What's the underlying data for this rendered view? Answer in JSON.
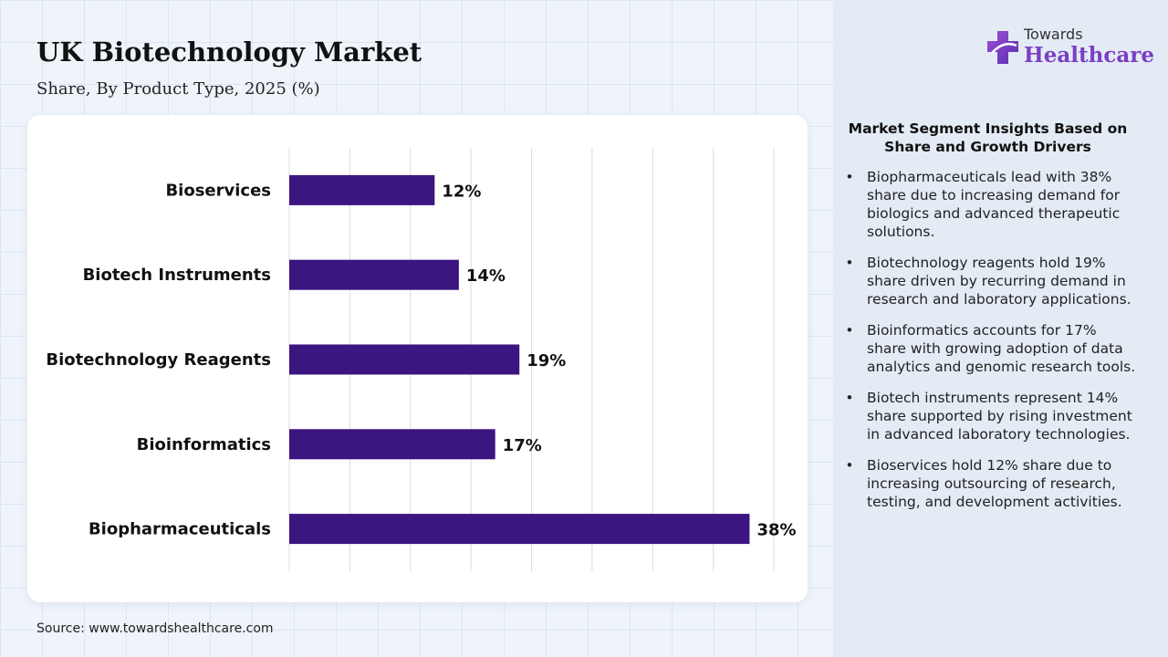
{
  "header": {
    "title": "UK Biotechnology Market",
    "subtitle": "Share, By Product Type, 2025 (%)"
  },
  "logo": {
    "line1": "Towards",
    "line2": "Healthcare",
    "icon": "plus-cross-logo-icon"
  },
  "chart_data": {
    "type": "bar",
    "orientation": "horizontal",
    "categories": [
      "Bioservices",
      "Biotech Instruments",
      "Biotechnology Reagents",
      "Bioinformatics",
      "Biopharmaceuticals"
    ],
    "values": [
      12,
      14,
      19,
      17,
      38
    ],
    "value_labels": [
      "12%",
      "14%",
      "19%",
      "17%",
      "38%"
    ],
    "unit": "%",
    "xlim": [
      0,
      40
    ],
    "grid": true,
    "bar_color": "#3b1580",
    "title": "UK Biotechnology Market",
    "subtitle": "Share, By Product Type, 2025 (%)"
  },
  "insights": {
    "title": "Market Segment Insights Based on Share and Growth Drivers",
    "items": [
      "Biopharmaceuticals lead with 38% share due to increasing demand for biologics and advanced therapeutic solutions.",
      "Biotechnology reagents hold 19% share driven by recurring demand in research and laboratory applications.",
      "Bioinformatics accounts for 17% share with growing adoption of data analytics and genomic research tools.",
      "Biotech instruments represent 14% share supported by rising investment in advanced laboratory technologies.",
      "Bioservices hold 12% share due to increasing outsourcing of research, testing, and development activities."
    ]
  },
  "footer": {
    "source": "Source: www.towardshealthcare.com"
  }
}
